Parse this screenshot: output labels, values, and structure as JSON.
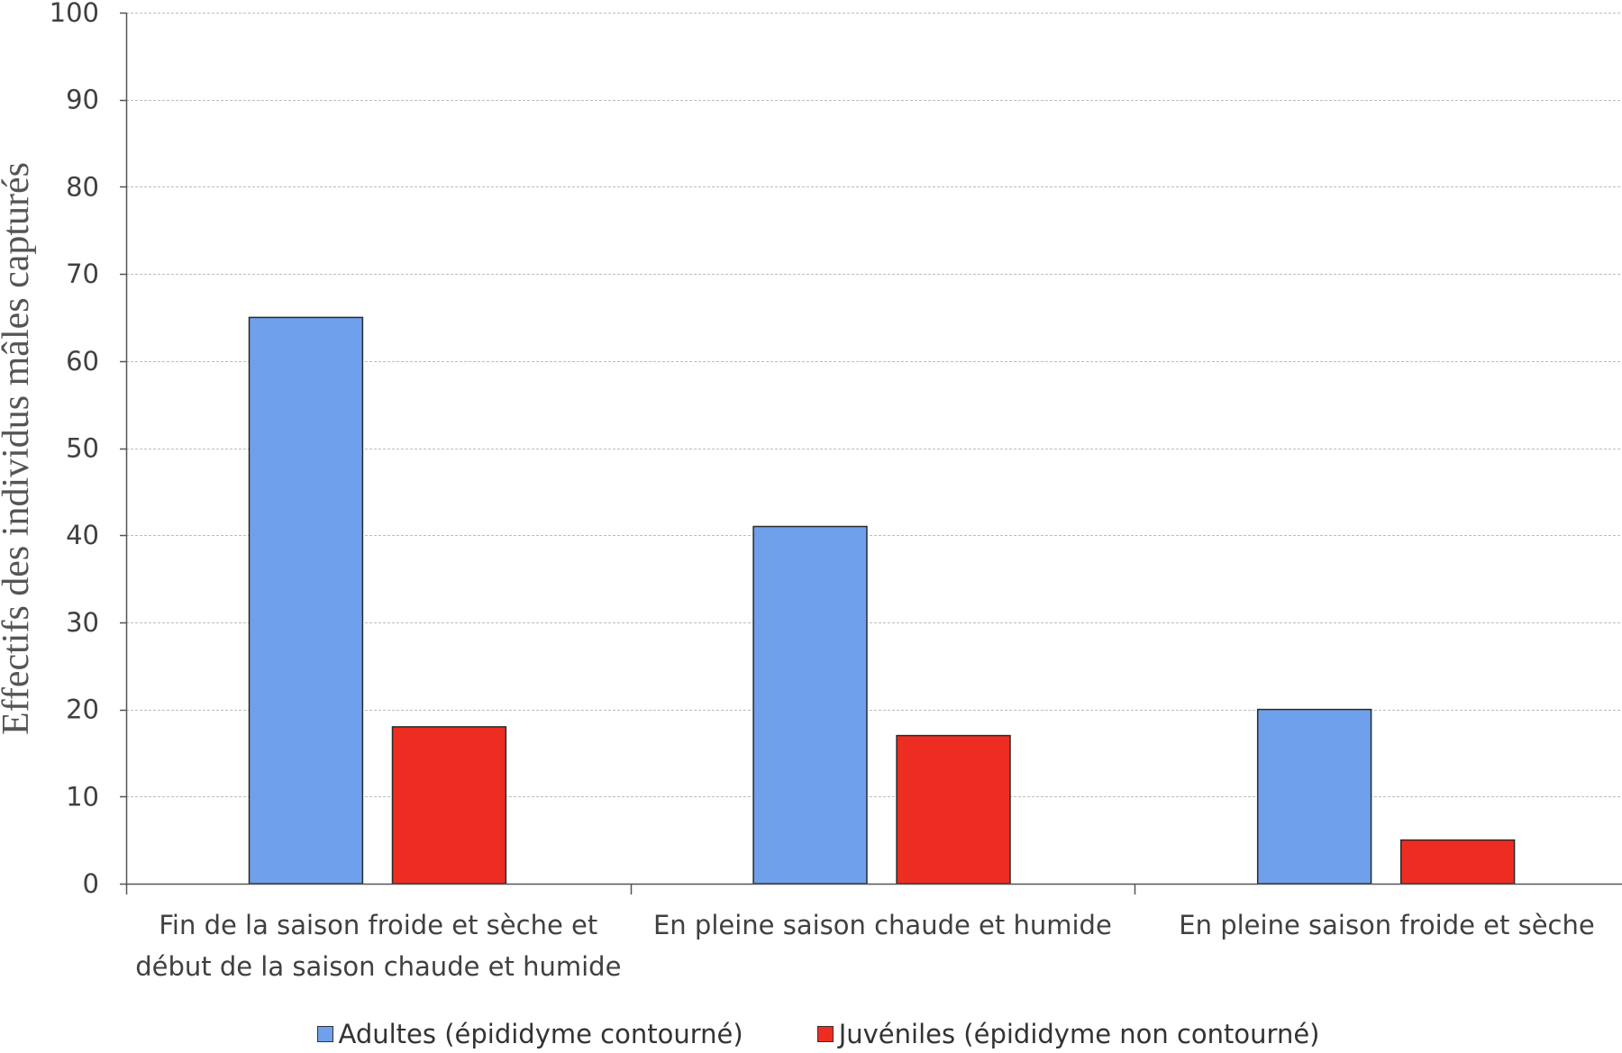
{
  "chart_data": {
    "type": "bar",
    "categories": [
      "Fin de la saison froide et sèche et\ndébut de la saison chaude et humide",
      "En pleine saison chaude et humide",
      "En pleine saison froide et sèche"
    ],
    "series": [
      {
        "name": "Adultes (épididyme contourné)",
        "values": [
          65,
          41,
          20
        ],
        "color": "#6fa0eb"
      },
      {
        "name": "Juvéniles (épididyme non contourné)",
        "values": [
          18,
          17,
          5
        ],
        "color": "#ee2d22"
      }
    ],
    "ylabel": "Effectifs des individus mâles capturés",
    "ylim": [
      0,
      100
    ],
    "yticks": [
      0,
      10,
      20,
      30,
      40,
      50,
      60,
      70,
      80,
      90,
      100
    ],
    "grid": true,
    "legend": "bottom"
  }
}
